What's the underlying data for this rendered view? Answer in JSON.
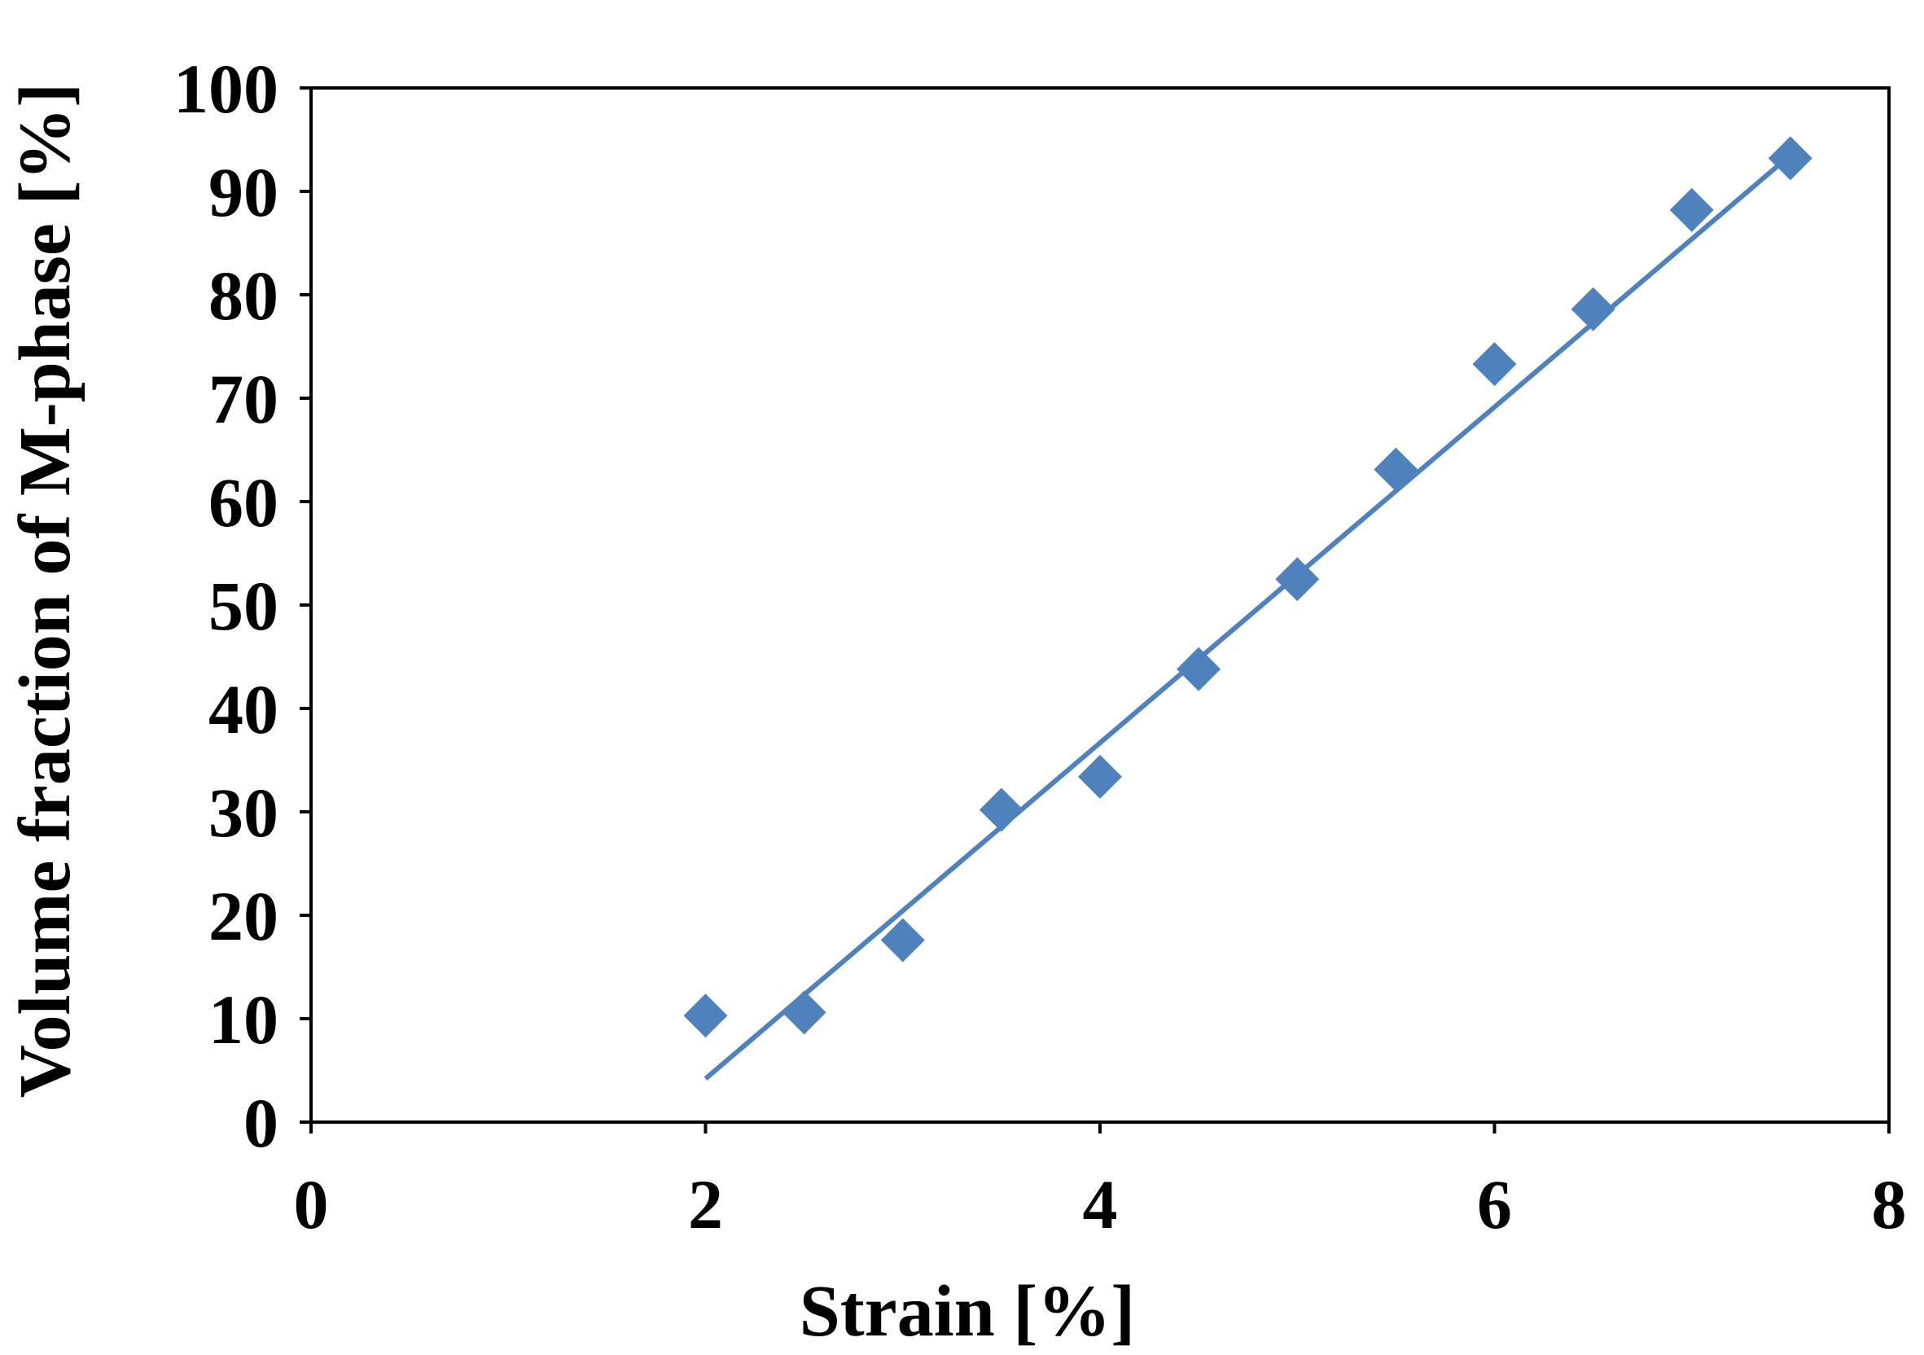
{
  "chart_data": {
    "type": "scatter",
    "xlabel": "Strain [%]",
    "ylabel": "Volume fraction of M-phase [%]",
    "xlim": [
      0,
      8
    ],
    "ylim": [
      0,
      100
    ],
    "x_ticks": [
      0,
      2,
      4,
      6,
      8
    ],
    "y_ticks": [
      0,
      10,
      20,
      30,
      40,
      50,
      60,
      70,
      80,
      90,
      100
    ],
    "x_tick_labels": [
      "0",
      "2",
      "4",
      "6",
      "8"
    ],
    "y_tick_labels": [
      "0",
      "10",
      "20",
      "30",
      "40",
      "50",
      "60",
      "70",
      "80",
      "90",
      "100"
    ],
    "grid": false,
    "legend": "none",
    "marker": "diamond",
    "color": "#4f81bd",
    "series": [
      {
        "x": [
          2.0,
          2.5,
          3.0,
          3.5,
          4.0,
          4.5,
          5.0,
          5.5,
          6.0,
          6.5,
          7.0,
          7.5
        ],
        "y": [
          10.3,
          10.6,
          17.6,
          30.2,
          33.4,
          43.8,
          52.5,
          63.1,
          73.3,
          78.6,
          88.2,
          93.2
        ]
      }
    ],
    "trendline": {
      "type": "linear",
      "x_start": 2.0,
      "y_start": 4.2,
      "x_end": 7.5,
      "y_end": 93.5
    }
  }
}
